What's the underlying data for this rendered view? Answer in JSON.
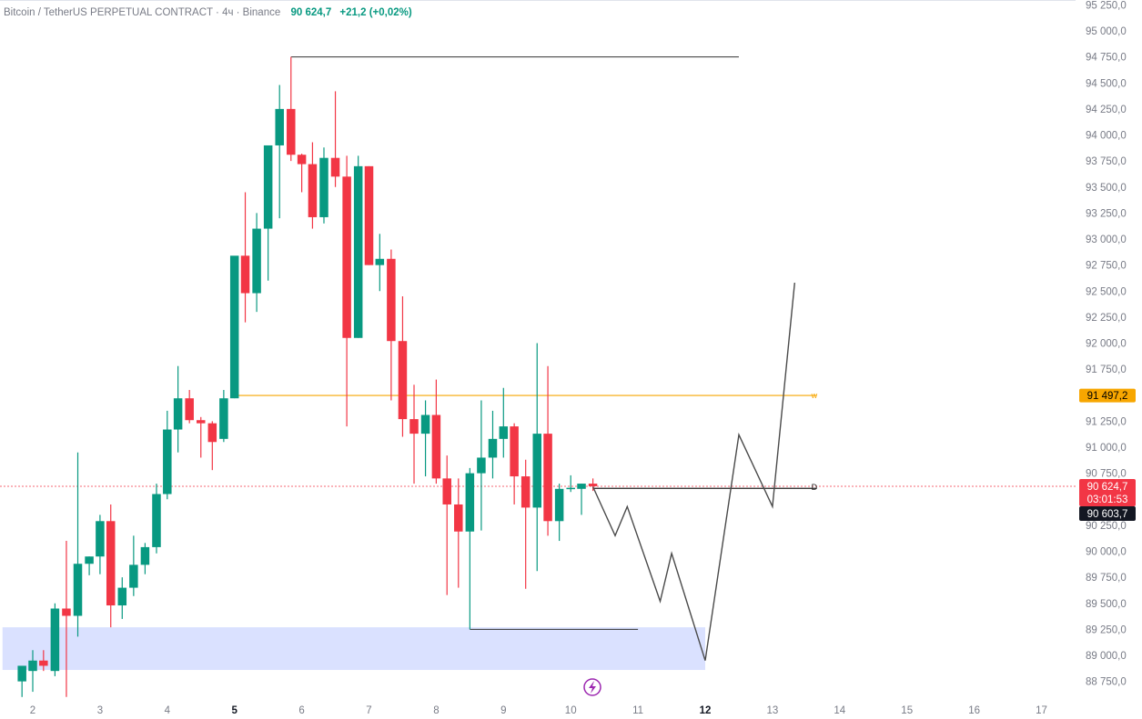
{
  "header": {
    "symbol": "Bitcoin / TetherUS PERPETUAL CONTRACT · 4ч · Binance",
    "last_price": "90 624,7",
    "change": "+21,2 (+0,02%)"
  },
  "colors": {
    "up": "#089981",
    "down": "#f23645",
    "orange_level": "#f7a600",
    "zone_fill": "#d6deff",
    "projection": "#4a4a4a",
    "price_dotted": "#f23645"
  },
  "price_tags": {
    "orange_level": "91 497,2",
    "current_price": "90 624,7",
    "countdown": "03:01:53",
    "crosshair_price": "90 603,7"
  },
  "markers": {
    "orange_line_label": "w",
    "current_line_label": "D"
  },
  "chart_data": {
    "type": "candlestick",
    "title": "Bitcoin / TetherUS PERPETUAL CONTRACT · 4ч · Binance",
    "xlabel": "",
    "ylabel": "",
    "ylim": [
      88600,
      95250
    ],
    "y_ticks": [
      "88 750,0",
      "89 000,0",
      "89 250,0",
      "89 500,0",
      "89 750,0",
      "90 000,0",
      "90 250,0",
      "90 500,0",
      "90 750,0",
      "91 000,0",
      "91 250,0",
      "91 500,0",
      "91 750,0",
      "92 000,0",
      "92 250,0",
      "92 500,0",
      "92 750,0",
      "93 000,0",
      "93 250,0",
      "93 500,0",
      "93 750,0",
      "94 000,0",
      "94 250,0",
      "94 500,0",
      "94 750,0",
      "95 000,0",
      "95 250,0"
    ],
    "y_tick_values": [
      88750,
      89000,
      89250,
      89500,
      89750,
      90000,
      90250,
      90500,
      90750,
      91000,
      91250,
      91500,
      91750,
      92000,
      92250,
      92500,
      92750,
      93000,
      93250,
      93500,
      93750,
      94000,
      94250,
      94500,
      94750,
      95000,
      95250
    ],
    "x_ticks": [
      {
        "label": "2",
        "x": 2.0,
        "bold": false
      },
      {
        "label": "3",
        "x": 3.0,
        "bold": false
      },
      {
        "label": "4",
        "x": 4.0,
        "bold": false
      },
      {
        "label": "5",
        "x": 5.0,
        "bold": true
      },
      {
        "label": "6",
        "x": 6.0,
        "bold": false
      },
      {
        "label": "7",
        "x": 7.0,
        "bold": false
      },
      {
        "label": "8",
        "x": 8.0,
        "bold": false
      },
      {
        "label": "9",
        "x": 9.0,
        "bold": false
      },
      {
        "label": "10",
        "x": 10.0,
        "bold": false
      },
      {
        "label": "11",
        "x": 11.0,
        "bold": false
      },
      {
        "label": "12",
        "x": 12.0,
        "bold": true
      },
      {
        "label": "13",
        "x": 13.0,
        "bold": false
      },
      {
        "label": "14",
        "x": 14.0,
        "bold": false
      },
      {
        "label": "15",
        "x": 15.0,
        "bold": false
      },
      {
        "label": "16",
        "x": 16.0,
        "bold": false
      },
      {
        "label": "17",
        "x": 17.0,
        "bold": false
      }
    ],
    "x_range": [
      1.55,
      17.4
    ],
    "candles": [
      {
        "t": 1.84,
        "o": 88750,
        "h": 88850,
        "l": 88600,
        "c": 88900
      },
      {
        "t": 2.0,
        "o": 88850,
        "h": 89050,
        "l": 88650,
        "c": 88950
      },
      {
        "t": 2.16,
        "o": 88950,
        "h": 89050,
        "l": 88850,
        "c": 88900
      },
      {
        "t": 2.33,
        "o": 88850,
        "h": 89500,
        "l": 88800,
        "c": 89450
      },
      {
        "t": 2.5,
        "o": 89450,
        "h": 90100,
        "l": 88600,
        "c": 89380
      },
      {
        "t": 2.67,
        "o": 89380,
        "h": 90950,
        "l": 89180,
        "c": 89880
      },
      {
        "t": 2.84,
        "o": 89880,
        "h": 89950,
        "l": 89770,
        "c": 89950
      },
      {
        "t": 3.0,
        "o": 89950,
        "h": 90350,
        "l": 89780,
        "c": 90290
      },
      {
        "t": 3.16,
        "o": 90290,
        "h": 90450,
        "l": 89270,
        "c": 89480
      },
      {
        "t": 3.33,
        "o": 89480,
        "h": 89750,
        "l": 89350,
        "c": 89650
      },
      {
        "t": 3.5,
        "o": 89650,
        "h": 90150,
        "l": 89570,
        "c": 89870
      },
      {
        "t": 3.67,
        "o": 89870,
        "h": 90080,
        "l": 89780,
        "c": 90040
      },
      {
        "t": 3.84,
        "o": 90040,
        "h": 90650,
        "l": 89980,
        "c": 90550
      },
      {
        "t": 4.0,
        "o": 90550,
        "h": 91350,
        "l": 90500,
        "c": 91170
      },
      {
        "t": 4.16,
        "o": 91170,
        "h": 91780,
        "l": 90950,
        "c": 91470
      },
      {
        "t": 4.33,
        "o": 91470,
        "h": 91550,
        "l": 91230,
        "c": 91260
      },
      {
        "t": 4.5,
        "o": 91260,
        "h": 91290,
        "l": 90900,
        "c": 91230
      },
      {
        "t": 4.67,
        "o": 91230,
        "h": 91250,
        "l": 90780,
        "c": 91050
      },
      {
        "t": 4.84,
        "o": 91080,
        "h": 91550,
        "l": 91050,
        "c": 91470
      },
      {
        "t": 5.0,
        "o": 91470,
        "h": 92800,
        "l": 91470,
        "c": 92840
      },
      {
        "t": 5.16,
        "o": 92840,
        "h": 93450,
        "l": 92200,
        "c": 92480
      },
      {
        "t": 5.33,
        "o": 92480,
        "h": 93250,
        "l": 92300,
        "c": 93100
      },
      {
        "t": 5.5,
        "o": 93100,
        "h": 93900,
        "l": 92600,
        "c": 93900
      },
      {
        "t": 5.67,
        "o": 93900,
        "h": 94480,
        "l": 93200,
        "c": 94250
      },
      {
        "t": 5.84,
        "o": 94250,
        "h": 94750,
        "l": 93750,
        "c": 93810
      },
      {
        "t": 6.0,
        "o": 93810,
        "h": 93820,
        "l": 93450,
        "c": 93720
      },
      {
        "t": 6.16,
        "o": 93720,
        "h": 93930,
        "l": 93100,
        "c": 93210
      },
      {
        "t": 6.33,
        "o": 93210,
        "h": 93880,
        "l": 93150,
        "c": 93780
      },
      {
        "t": 6.5,
        "o": 93780,
        "h": 94420,
        "l": 93500,
        "c": 93600
      },
      {
        "t": 6.67,
        "o": 93600,
        "h": 93800,
        "l": 91200,
        "c": 92050
      },
      {
        "t": 6.84,
        "o": 92050,
        "h": 93800,
        "l": 92050,
        "c": 93700
      },
      {
        "t": 7.0,
        "o": 93700,
        "h": 93700,
        "l": 92750,
        "c": 92750
      },
      {
        "t": 7.16,
        "o": 92750,
        "h": 93050,
        "l": 92500,
        "c": 92810
      },
      {
        "t": 7.33,
        "o": 92810,
        "h": 92900,
        "l": 91450,
        "c": 92020
      },
      {
        "t": 7.5,
        "o": 92020,
        "h": 92450,
        "l": 91100,
        "c": 91270
      },
      {
        "t": 7.67,
        "o": 91270,
        "h": 91600,
        "l": 90650,
        "c": 91130
      },
      {
        "t": 7.84,
        "o": 91130,
        "h": 91450,
        "l": 90720,
        "c": 91310
      },
      {
        "t": 8.0,
        "o": 91310,
        "h": 91650,
        "l": 90650,
        "c": 90700
      },
      {
        "t": 8.16,
        "o": 90700,
        "h": 90920,
        "l": 89580,
        "c": 90450
      },
      {
        "t": 8.33,
        "o": 90450,
        "h": 90700,
        "l": 89650,
        "c": 90190
      },
      {
        "t": 8.5,
        "o": 90190,
        "h": 90800,
        "l": 89250,
        "c": 90750
      },
      {
        "t": 8.67,
        "o": 90750,
        "h": 91450,
        "l": 90200,
        "c": 90900
      },
      {
        "t": 8.84,
        "o": 90900,
        "h": 91350,
        "l": 90700,
        "c": 91080
      },
      {
        "t": 9.0,
        "o": 91080,
        "h": 91570,
        "l": 90900,
        "c": 91200
      },
      {
        "t": 9.16,
        "o": 91200,
        "h": 91230,
        "l": 90450,
        "c": 90720
      },
      {
        "t": 9.33,
        "o": 90720,
        "h": 90880,
        "l": 89640,
        "c": 90420
      },
      {
        "t": 9.5,
        "o": 90420,
        "h": 92000,
        "l": 89810,
        "c": 91130
      },
      {
        "t": 9.66,
        "o": 91130,
        "h": 91780,
        "l": 90150,
        "c": 90290
      },
      {
        "t": 9.83,
        "o": 90290,
        "h": 90650,
        "l": 90100,
        "c": 90600
      },
      {
        "t": 10.0,
        "o": 90600,
        "h": 90730,
        "l": 90570,
        "c": 90610
      },
      {
        "t": 10.16,
        "o": 90600,
        "h": 90650,
        "l": 90350,
        "c": 90650
      },
      {
        "t": 10.33,
        "o": 90650,
        "h": 90700,
        "l": 90580,
        "c": 90625
      }
    ],
    "annotations": {
      "high_line": {
        "x1": 5.84,
        "x2": 12.5,
        "y": 94750
      },
      "orange_level": {
        "x1": 5.0,
        "x2": 13.66,
        "y": 91497.2,
        "label": "w"
      },
      "current_line": {
        "x1": 10.33,
        "x2": 13.66,
        "y": 90605,
        "label": "D"
      },
      "low_line": {
        "x1": 8.5,
        "x2": 11.0,
        "y": 89250
      },
      "demand_zone": {
        "x1": 1.55,
        "x2": 12.0,
        "y_low": 88860,
        "y_high": 89270
      },
      "projection_path": [
        [
          10.33,
          90620
        ],
        [
          10.66,
          90150
        ],
        [
          10.84,
          90430
        ],
        [
          11.33,
          89520
        ],
        [
          11.5,
          89980
        ],
        [
          12.0,
          88950
        ],
        [
          12.5,
          91120
        ],
        [
          13.0,
          90430
        ],
        [
          13.33,
          92580
        ]
      ]
    }
  }
}
